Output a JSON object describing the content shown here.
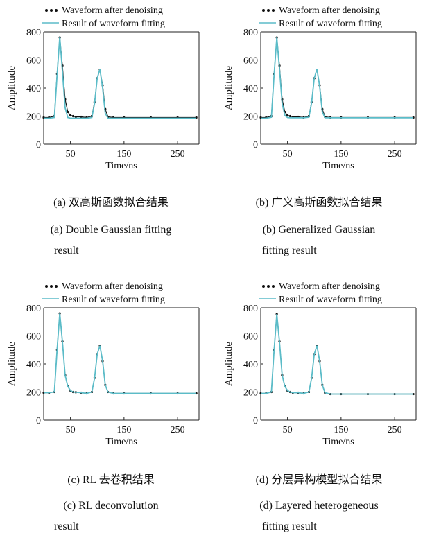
{
  "common": {
    "legend_denoise": "Waveform after denoising",
    "legend_fit": "Result of waveform fitting",
    "xlabel": "Time/ns",
    "ylabel": "Amplitude",
    "xticks": [
      50,
      150,
      250
    ],
    "yticks": [
      0,
      200,
      400,
      600,
      800
    ],
    "colors": {
      "denoise": "#111111",
      "fit": "#5bbcc8",
      "axis": "#222222"
    }
  },
  "panels": [
    {
      "caption_cn": "(a)  双高斯函数拟合结果",
      "caption_en_1": "(a)  Double Gaussian  fitting",
      "caption_en_2": "result"
    },
    {
      "caption_cn": "(b)  广义高斯函数拟合结果",
      "caption_en_1": "(b)  Generalized  Gaussian",
      "caption_en_2": "fitting  result"
    },
    {
      "caption_cn": "(c)  RL 去卷积结果",
      "caption_en_1": "(c)  RL  deconvolution",
      "caption_en_2": "result"
    },
    {
      "caption_cn": "(d)  分层异构模型拟合结果",
      "caption_en_1": "(d)  Layered  heterogeneous",
      "caption_en_2": "fitting  result"
    }
  ],
  "chart_data": [
    {
      "type": "line",
      "xlabel": "Time/ns",
      "ylabel": "Amplitude",
      "xlim": [
        0,
        290
      ],
      "ylim": [
        0,
        800
      ],
      "series": [
        {
          "name": "Waveform after denoising",
          "style": "dotted",
          "x": [
            0,
            10,
            20,
            25,
            30,
            35,
            40,
            45,
            50,
            55,
            60,
            70,
            80,
            90,
            95,
            100,
            105,
            110,
            115,
            120,
            130,
            150,
            200,
            250,
            285
          ],
          "y": [
            190,
            190,
            200,
            500,
            760,
            560,
            320,
            230,
            205,
            200,
            195,
            195,
            190,
            200,
            300,
            470,
            530,
            420,
            250,
            195,
            190,
            190,
            190,
            190,
            190
          ]
        },
        {
          "name": "Result of waveform fitting",
          "style": "solid",
          "x": [
            0,
            10,
            20,
            25,
            30,
            35,
            40,
            45,
            50,
            55,
            60,
            70,
            80,
            90,
            95,
            100,
            105,
            110,
            115,
            120,
            130,
            150,
            200,
            250,
            285
          ],
          "y": [
            185,
            185,
            190,
            490,
            765,
            520,
            260,
            190,
            185,
            185,
            185,
            185,
            185,
            190,
            290,
            470,
            535,
            400,
            220,
            185,
            185,
            185,
            185,
            185,
            185
          ]
        }
      ]
    },
    {
      "type": "line",
      "xlabel": "Time/ns",
      "ylabel": "Amplitude",
      "xlim": [
        0,
        290
      ],
      "ylim": [
        0,
        800
      ],
      "series": [
        {
          "name": "Waveform after denoising",
          "style": "dotted",
          "x": [
            0,
            10,
            20,
            25,
            30,
            35,
            40,
            45,
            50,
            55,
            60,
            70,
            80,
            90,
            95,
            100,
            105,
            110,
            115,
            120,
            130,
            150,
            200,
            250,
            285
          ],
          "y": [
            190,
            190,
            200,
            500,
            760,
            560,
            320,
            230,
            205,
            200,
            195,
            195,
            190,
            200,
            300,
            470,
            530,
            420,
            250,
            195,
            190,
            190,
            190,
            190,
            190
          ]
        },
        {
          "name": "Result of waveform fitting",
          "style": "solid",
          "x": [
            0,
            10,
            20,
            25,
            30,
            35,
            40,
            45,
            50,
            55,
            60,
            70,
            80,
            90,
            95,
            100,
            105,
            110,
            115,
            120,
            130,
            150,
            200,
            250,
            285
          ],
          "y": [
            185,
            185,
            192,
            495,
            760,
            540,
            290,
            205,
            190,
            188,
            188,
            188,
            188,
            192,
            295,
            470,
            535,
            410,
            230,
            188,
            188,
            188,
            188,
            188,
            188
          ]
        }
      ]
    },
    {
      "type": "line",
      "xlabel": "Time/ns",
      "ylabel": "Amplitude",
      "xlim": [
        0,
        290
      ],
      "ylim": [
        0,
        800
      ],
      "series": [
        {
          "name": "Waveform after denoising",
          "style": "dotted",
          "x": [
            0,
            10,
            20,
            25,
            30,
            35,
            40,
            45,
            50,
            55,
            60,
            70,
            80,
            90,
            95,
            100,
            105,
            110,
            115,
            120,
            130,
            150,
            200,
            250,
            285
          ],
          "y": [
            195,
            195,
            200,
            500,
            760,
            560,
            320,
            240,
            210,
            200,
            198,
            195,
            190,
            200,
            300,
            470,
            530,
            420,
            250,
            200,
            190,
            190,
            190,
            190,
            190
          ]
        },
        {
          "name": "Result of waveform fitting",
          "style": "solid",
          "x": [
            0,
            10,
            20,
            25,
            30,
            35,
            40,
            45,
            50,
            55,
            60,
            70,
            80,
            90,
            95,
            100,
            105,
            110,
            115,
            120,
            130,
            150,
            200,
            250,
            285
          ],
          "y": [
            195,
            195,
            200,
            500,
            760,
            560,
            320,
            240,
            210,
            200,
            198,
            195,
            190,
            200,
            300,
            470,
            530,
            420,
            250,
            200,
            190,
            190,
            190,
            190,
            190
          ]
        }
      ]
    },
    {
      "type": "line",
      "xlabel": "Time/ns",
      "ylabel": "Amplitude",
      "xlim": [
        0,
        290
      ],
      "ylim": [
        0,
        800
      ],
      "series": [
        {
          "name": "Waveform after denoising",
          "style": "dotted",
          "x": [
            0,
            10,
            20,
            25,
            30,
            35,
            40,
            45,
            50,
            55,
            60,
            70,
            80,
            90,
            95,
            100,
            105,
            110,
            115,
            120,
            130,
            150,
            200,
            250,
            285
          ],
          "y": [
            190,
            190,
            200,
            500,
            755,
            560,
            320,
            240,
            210,
            200,
            195,
            195,
            190,
            200,
            300,
            470,
            530,
            420,
            250,
            195,
            185,
            185,
            185,
            185,
            185
          ]
        },
        {
          "name": "Result of waveform fitting",
          "style": "solid",
          "x": [
            0,
            10,
            20,
            25,
            30,
            35,
            40,
            45,
            50,
            55,
            60,
            70,
            80,
            90,
            95,
            100,
            105,
            110,
            115,
            120,
            130,
            150,
            200,
            250,
            285
          ],
          "y": [
            190,
            190,
            200,
            500,
            755,
            560,
            320,
            240,
            210,
            200,
            195,
            195,
            190,
            200,
            300,
            470,
            530,
            420,
            250,
            195,
            185,
            185,
            185,
            185,
            185
          ]
        }
      ]
    }
  ]
}
